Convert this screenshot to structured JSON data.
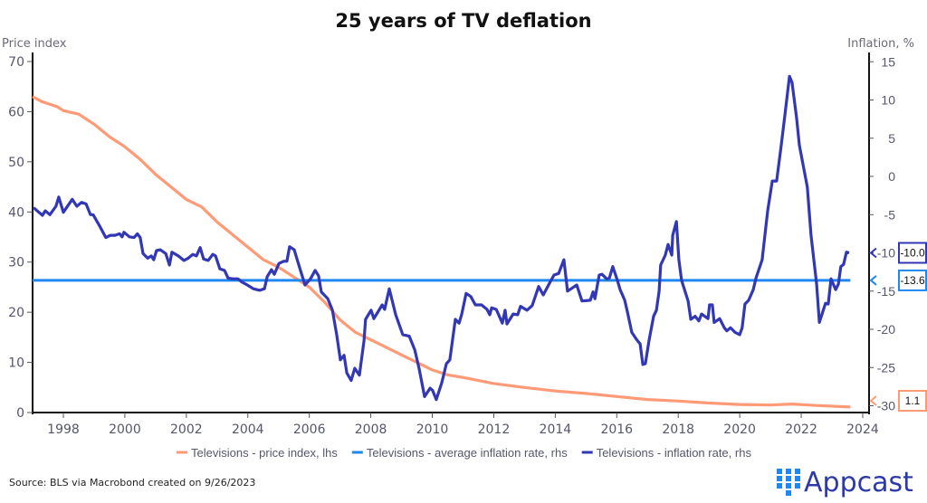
{
  "chart_data": {
    "type": "line",
    "title": "25 years of TV deflation",
    "ylabel_left": "Price index",
    "ylabel_right": "Inflation, %",
    "xlim": [
      1997,
      2024.3
    ],
    "ylim_left": [
      0,
      70
    ],
    "ylim_right": [
      -31,
      15
    ],
    "x_ticks": [
      "1998",
      "2000",
      "2002",
      "2004",
      "2006",
      "2008",
      "2010",
      "2012",
      "2014",
      "2016",
      "2018",
      "2020",
      "2022",
      "2024"
    ],
    "y_ticks_left": [
      "0",
      "10",
      "20",
      "30",
      "40",
      "50",
      "60",
      "70"
    ],
    "y_ticks_right": [
      "-30",
      "-25",
      "-20",
      "-15",
      "-10",
      "-5",
      "0",
      "5",
      "10",
      "15"
    ],
    "grid": false,
    "legend_position": "bottom",
    "colors": {
      "price": "#FF9A76",
      "average": "#1E88F0",
      "inflation": "#3237B5"
    },
    "series": [
      {
        "name": "Televisions - price index, lhs",
        "axis": "left",
        "last_label": "1.1",
        "points": [
          [
            1997.0,
            63
          ],
          [
            1997.3,
            62
          ],
          [
            1997.8,
            61
          ],
          [
            1998.0,
            60.2
          ],
          [
            1998.5,
            59.5
          ],
          [
            1999.0,
            57.5
          ],
          [
            1999.5,
            55
          ],
          [
            2000.0,
            53
          ],
          [
            2000.5,
            50.5
          ],
          [
            2001.0,
            47.5
          ],
          [
            2001.5,
            45
          ],
          [
            2002.0,
            42.5
          ],
          [
            2002.5,
            41
          ],
          [
            2003.0,
            38
          ],
          [
            2003.5,
            35.5
          ],
          [
            2004.0,
            33
          ],
          [
            2004.5,
            30.5
          ],
          [
            2005.0,
            29
          ],
          [
            2005.5,
            27
          ],
          [
            2006.0,
            25
          ],
          [
            2006.5,
            22
          ],
          [
            2007.0,
            18.5
          ],
          [
            2007.5,
            16
          ],
          [
            2008.0,
            14.5
          ],
          [
            2008.5,
            13
          ],
          [
            2009.0,
            11.5
          ],
          [
            2009.5,
            10
          ],
          [
            2010.0,
            8.5
          ],
          [
            2010.5,
            7.5
          ],
          [
            2011.0,
            7
          ],
          [
            2012.0,
            5.8
          ],
          [
            2013.0,
            5
          ],
          [
            2014.0,
            4.3
          ],
          [
            2015.0,
            3.8
          ],
          [
            2016.0,
            3.2
          ],
          [
            2017.0,
            2.6
          ],
          [
            2018.0,
            2.3
          ],
          [
            2019.0,
            1.9
          ],
          [
            2020.0,
            1.6
          ],
          [
            2021.0,
            1.5
          ],
          [
            2021.7,
            1.7
          ],
          [
            2022.5,
            1.4
          ],
          [
            2023.6,
            1.1
          ]
        ]
      },
      {
        "name": "Televisions - average inflation rate, rhs",
        "axis": "right",
        "last_label": "-13.6",
        "points": [
          [
            1997.0,
            -13.6
          ],
          [
            2023.6,
            -13.6
          ]
        ]
      },
      {
        "name": "Televisions - inflation rate, rhs",
        "axis": "right",
        "last_label": "-10.0",
        "points": [
          [
            1997.03,
            -4.1
          ],
          [
            1997.32,
            -5.1
          ],
          [
            1997.41,
            -4.5
          ],
          [
            1997.56,
            -5.0
          ],
          [
            1997.76,
            -3.9
          ],
          [
            1997.85,
            -2.7
          ],
          [
            1998.0,
            -4.7
          ],
          [
            1998.29,
            -3.0
          ],
          [
            1998.44,
            -3.9
          ],
          [
            1998.59,
            -3.4
          ],
          [
            1998.74,
            -3.6
          ],
          [
            1998.88,
            -5.0
          ],
          [
            1998.97,
            -5.0
          ],
          [
            1999.18,
            -6.5
          ],
          [
            1999.38,
            -8.0
          ],
          [
            1999.53,
            -7.7
          ],
          [
            1999.68,
            -7.7
          ],
          [
            1999.83,
            -7.5
          ],
          [
            1999.91,
            -7.9
          ],
          [
            1999.97,
            -7.3
          ],
          [
            2000.15,
            -7.9
          ],
          [
            2000.3,
            -8.0
          ],
          [
            2000.41,
            -7.5
          ],
          [
            2000.5,
            -8.0
          ],
          [
            2000.59,
            -10.1
          ],
          [
            2000.74,
            -10.7
          ],
          [
            2000.86,
            -10.4
          ],
          [
            2000.94,
            -10.9
          ],
          [
            2001.03,
            -9.7
          ],
          [
            2001.15,
            -9.6
          ],
          [
            2001.33,
            -10.1
          ],
          [
            2001.45,
            -11.6
          ],
          [
            2001.53,
            -9.9
          ],
          [
            2001.74,
            -10.4
          ],
          [
            2001.92,
            -11.0
          ],
          [
            2002.06,
            -10.7
          ],
          [
            2002.21,
            -10.2
          ],
          [
            2002.33,
            -10.4
          ],
          [
            2002.45,
            -9.3
          ],
          [
            2002.56,
            -10.8
          ],
          [
            2002.71,
            -11.0
          ],
          [
            2002.86,
            -10.2
          ],
          [
            2002.95,
            -10.4
          ],
          [
            2003.09,
            -12.1
          ],
          [
            2003.24,
            -12.3
          ],
          [
            2003.36,
            -13.3
          ],
          [
            2003.51,
            -13.4
          ],
          [
            2003.68,
            -13.4
          ],
          [
            2003.8,
            -13.8
          ],
          [
            2003.98,
            -14.2
          ],
          [
            2004.18,
            -14.7
          ],
          [
            2004.39,
            -14.9
          ],
          [
            2004.54,
            -14.7
          ],
          [
            2004.63,
            -13.1
          ],
          [
            2004.77,
            -12.2
          ],
          [
            2004.86,
            -12.8
          ],
          [
            2005.01,
            -11.4
          ],
          [
            2005.16,
            -11.1
          ],
          [
            2005.27,
            -11.1
          ],
          [
            2005.36,
            -9.2
          ],
          [
            2005.51,
            -9.6
          ],
          [
            2005.66,
            -11.6
          ],
          [
            2005.86,
            -14.2
          ],
          [
            2006.04,
            -13.4
          ],
          [
            2006.19,
            -12.3
          ],
          [
            2006.3,
            -13.0
          ],
          [
            2006.39,
            -15.1
          ],
          [
            2006.6,
            -16.0
          ],
          [
            2006.75,
            -17.5
          ],
          [
            2006.89,
            -20.7
          ],
          [
            2007.01,
            -24.0
          ],
          [
            2007.13,
            -23.4
          ],
          [
            2007.22,
            -25.7
          ],
          [
            2007.36,
            -26.7
          ],
          [
            2007.48,
            -25.1
          ],
          [
            2007.63,
            -26.0
          ],
          [
            2007.78,
            -21.5
          ],
          [
            2007.83,
            -18.7
          ],
          [
            2008.01,
            -17.5
          ],
          [
            2008.1,
            -18.6
          ],
          [
            2008.37,
            -16.8
          ],
          [
            2008.45,
            -17.4
          ],
          [
            2008.6,
            -14.7
          ],
          [
            2008.81,
            -18.1
          ],
          [
            2009.04,
            -20.7
          ],
          [
            2009.25,
            -20.9
          ],
          [
            2009.43,
            -22.7
          ],
          [
            2009.57,
            -25.1
          ],
          [
            2009.75,
            -28.8
          ],
          [
            2009.93,
            -27.7
          ],
          [
            2010.01,
            -28.0
          ],
          [
            2010.13,
            -29.2
          ],
          [
            2010.31,
            -27.0
          ],
          [
            2010.46,
            -24.5
          ],
          [
            2010.57,
            -24.0
          ],
          [
            2010.75,
            -18.7
          ],
          [
            2010.87,
            -19.2
          ],
          [
            2010.96,
            -18.0
          ],
          [
            2011.1,
            -15.3
          ],
          [
            2011.25,
            -15.7
          ],
          [
            2011.4,
            -16.8
          ],
          [
            2011.6,
            -16.8
          ],
          [
            2011.78,
            -17.4
          ],
          [
            2011.87,
            -18.1
          ],
          [
            2011.93,
            -17.2
          ],
          [
            2012.08,
            -17.4
          ],
          [
            2012.28,
            -19.2
          ],
          [
            2012.37,
            -17.5
          ],
          [
            2012.43,
            -19.3
          ],
          [
            2012.63,
            -18.0
          ],
          [
            2012.78,
            -18.1
          ],
          [
            2012.87,
            -17.0
          ],
          [
            2013.08,
            -17.5
          ],
          [
            2013.25,
            -16.9
          ],
          [
            2013.46,
            -14.4
          ],
          [
            2013.61,
            -15.5
          ],
          [
            2013.81,
            -14.0
          ],
          [
            2013.96,
            -12.9
          ],
          [
            2014.11,
            -12.7
          ],
          [
            2014.28,
            -10.9
          ],
          [
            2014.4,
            -15.0
          ],
          [
            2014.55,
            -14.6
          ],
          [
            2014.7,
            -14.2
          ],
          [
            2014.87,
            -16.3
          ],
          [
            2015.14,
            -16.2
          ],
          [
            2015.23,
            -15.1
          ],
          [
            2015.29,
            -16.0
          ],
          [
            2015.43,
            -12.9
          ],
          [
            2015.52,
            -12.8
          ],
          [
            2015.67,
            -13.4
          ],
          [
            2015.76,
            -13.3
          ],
          [
            2015.87,
            -11.8
          ],
          [
            2016.02,
            -13.6
          ],
          [
            2016.11,
            -14.8
          ],
          [
            2016.26,
            -16.2
          ],
          [
            2016.35,
            -17.8
          ],
          [
            2016.49,
            -20.4
          ],
          [
            2016.64,
            -21.3
          ],
          [
            2016.76,
            -21.9
          ],
          [
            2016.85,
            -24.6
          ],
          [
            2016.93,
            -24.5
          ],
          [
            2017.05,
            -21.5
          ],
          [
            2017.2,
            -18.3
          ],
          [
            2017.29,
            -17.5
          ],
          [
            2017.38,
            -15.0
          ],
          [
            2017.43,
            -11.6
          ],
          [
            2017.58,
            -10.3
          ],
          [
            2017.67,
            -8.9
          ],
          [
            2017.79,
            -10.3
          ],
          [
            2017.82,
            -7.7
          ],
          [
            2017.94,
            -5.9
          ],
          [
            2018.02,
            -10.9
          ],
          [
            2018.11,
            -13.6
          ],
          [
            2018.32,
            -16.3
          ],
          [
            2018.41,
            -18.7
          ],
          [
            2018.55,
            -18.3
          ],
          [
            2018.67,
            -18.9
          ],
          [
            2018.76,
            -18.0
          ],
          [
            2018.97,
            -18.6
          ],
          [
            2019.02,
            -16.8
          ],
          [
            2019.11,
            -16.8
          ],
          [
            2019.17,
            -19.1
          ],
          [
            2019.35,
            -18.6
          ],
          [
            2019.5,
            -19.8
          ],
          [
            2019.58,
            -20.2
          ],
          [
            2019.7,
            -19.8
          ],
          [
            2019.85,
            -20.4
          ],
          [
            2020.0,
            -20.7
          ],
          [
            2020.08,
            -19.8
          ],
          [
            2020.17,
            -16.7
          ],
          [
            2020.29,
            -16.2
          ],
          [
            2020.44,
            -14.8
          ],
          [
            2020.53,
            -13.3
          ],
          [
            2020.73,
            -10.9
          ],
          [
            2020.91,
            -4.5
          ],
          [
            2021.06,
            -0.6
          ],
          [
            2021.2,
            -0.6
          ],
          [
            2021.35,
            4.1
          ],
          [
            2021.47,
            8.0
          ],
          [
            2021.62,
            13.1
          ],
          [
            2021.7,
            12.3
          ],
          [
            2021.85,
            7.7
          ],
          [
            2021.94,
            4.1
          ],
          [
            2022.2,
            -1.4
          ],
          [
            2022.32,
            -7.7
          ],
          [
            2022.5,
            -14.0
          ],
          [
            2022.59,
            -19.1
          ],
          [
            2022.79,
            -16.6
          ],
          [
            2022.88,
            -16.7
          ],
          [
            2022.97,
            -13.4
          ],
          [
            2023.12,
            -14.8
          ],
          [
            2023.21,
            -14.1
          ],
          [
            2023.29,
            -11.8
          ],
          [
            2023.38,
            -11.5
          ],
          [
            2023.47,
            -9.9
          ],
          [
            2023.56,
            -10.0
          ]
        ]
      }
    ]
  },
  "footer": {
    "source": "Source: BLS via Macrobond created on 9/26/2023",
    "logo_text": "Appcast"
  }
}
